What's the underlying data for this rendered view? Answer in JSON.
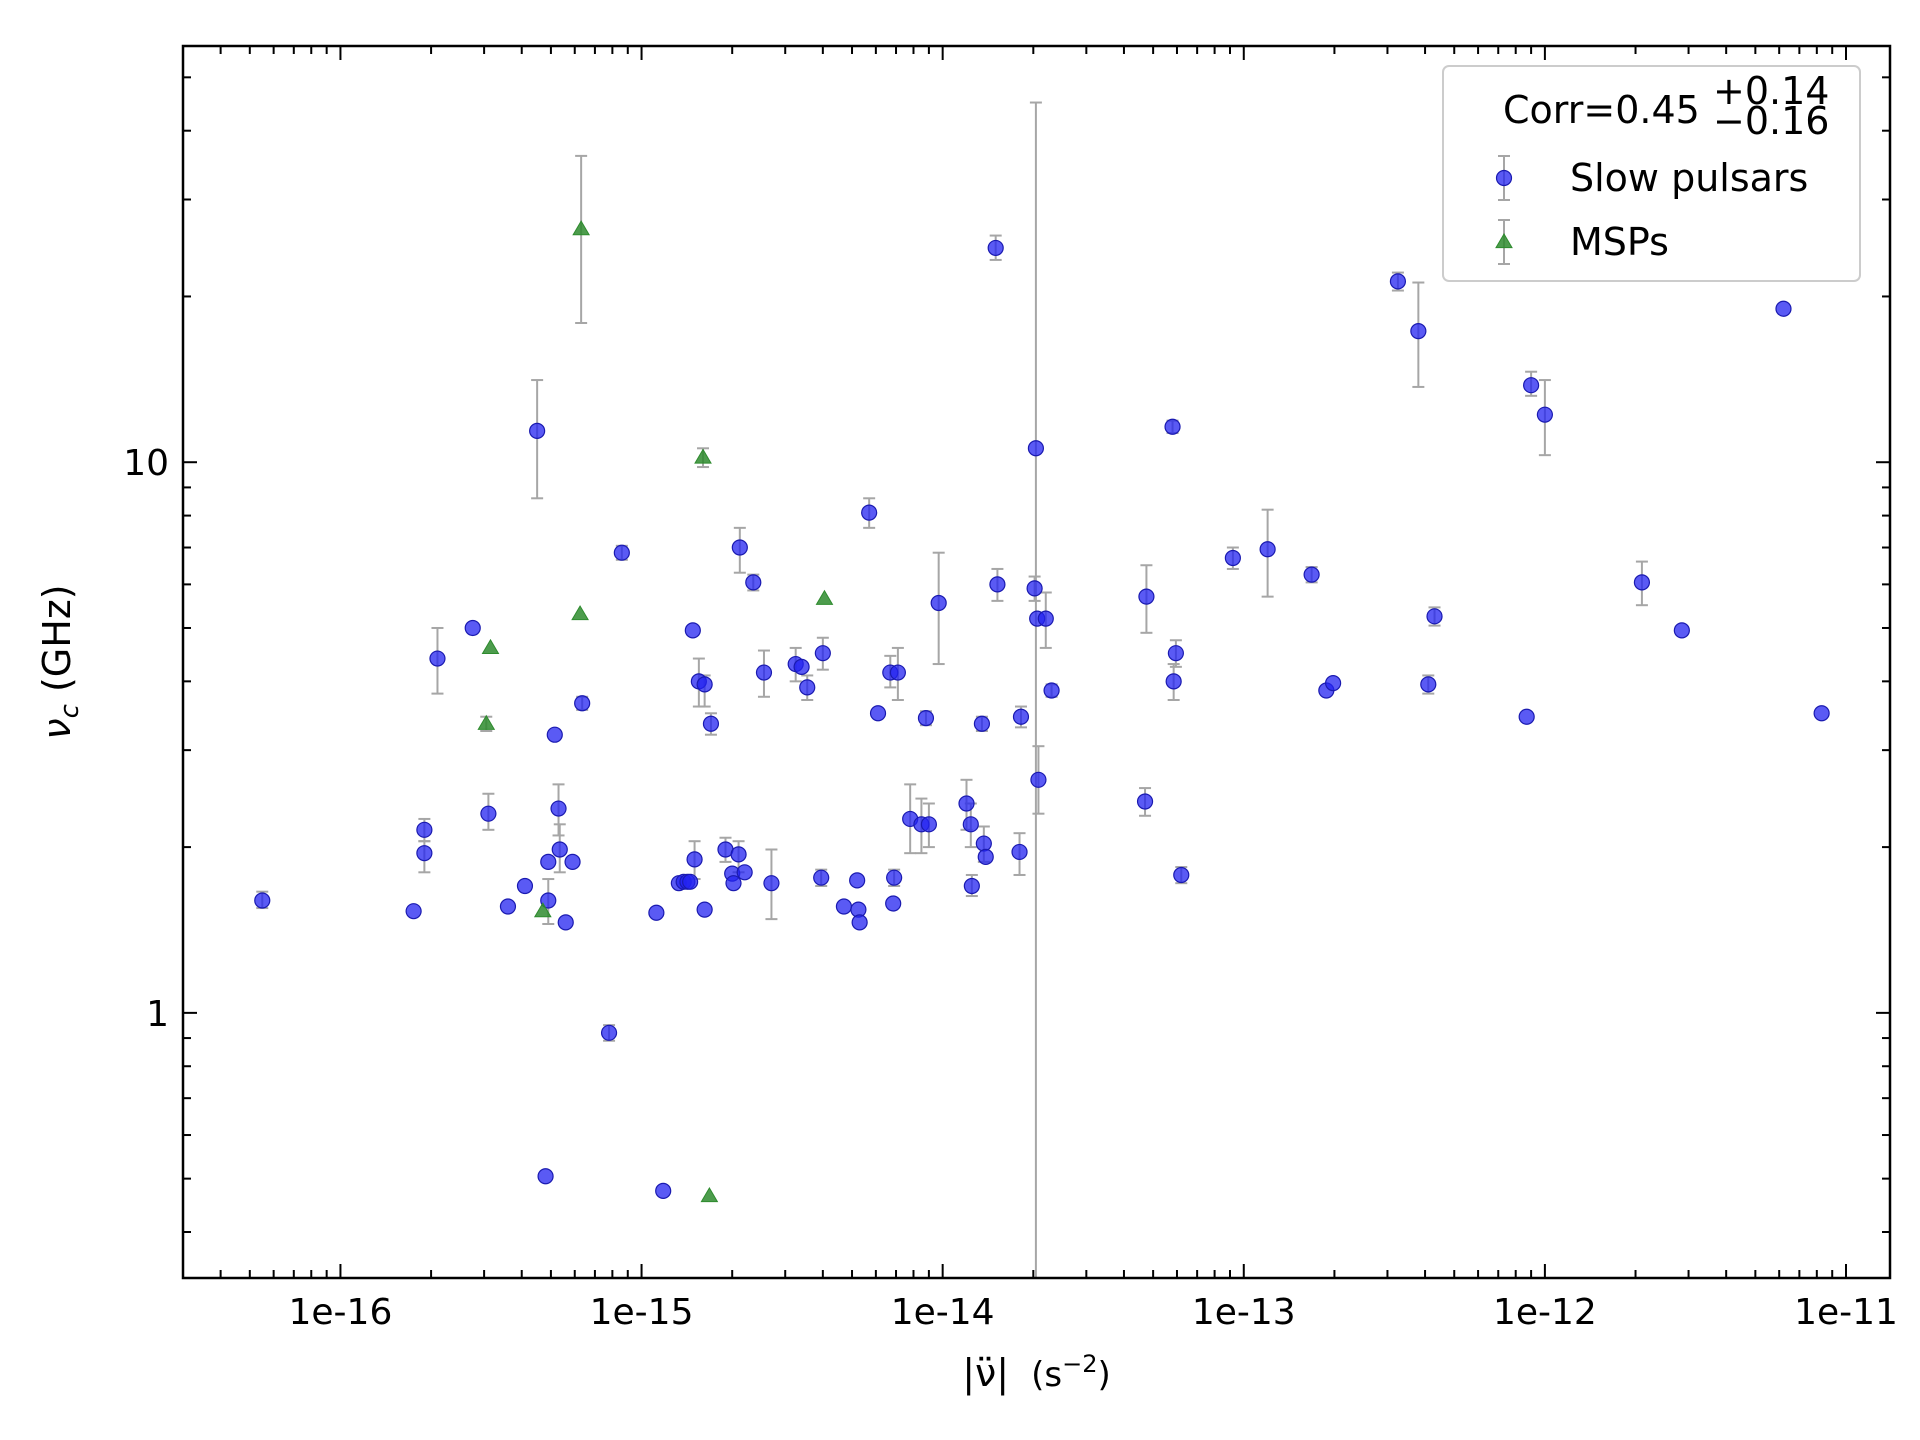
{
  "chart_data": {
    "type": "scatter",
    "x_scale": "log",
    "y_scale": "log",
    "xlim": [
      3e-17,
      1.4e-11
    ],
    "ylim": [
      0.33,
      57
    ],
    "xlabel": {
      "main": "|ν̈|",
      "unit": "(s",
      "exp": "−2",
      "close": ")"
    },
    "ylabel": {
      "symbol": "ν",
      "sub": "c",
      "unit": " (GHz)"
    },
    "x_ticks": [
      {
        "value": 1e-16,
        "label": "1e-16"
      },
      {
        "value": 1e-15,
        "label": "1e-15"
      },
      {
        "value": 1e-14,
        "label": "1e-14"
      },
      {
        "value": 1e-13,
        "label": "1e-13"
      },
      {
        "value": 1e-12,
        "label": "1e-12"
      },
      {
        "value": 1e-11,
        "label": "1e-11"
      }
    ],
    "y_ticks": [
      {
        "value": 1,
        "label": "1"
      },
      {
        "value": 10,
        "label": "10"
      }
    ],
    "grid": false,
    "legend": {
      "placement": "top-right",
      "title": {
        "main": "Corr=0.45",
        "sup": "+0.14",
        "sub": "−0.16"
      }
    },
    "series": [
      {
        "name": "Slow pulsars",
        "marker": "circle",
        "color": "#2323f0",
        "points": [
          {
            "x": 5.5e-17,
            "y": 1.6,
            "lo": 1.55,
            "hi": 1.66
          },
          {
            "x": 1.75e-16,
            "y": 1.53
          },
          {
            "x": 1.9e-16,
            "y": 2.15,
            "lo": 2.05,
            "hi": 2.25
          },
          {
            "x": 1.9e-16,
            "y": 1.95,
            "lo": 1.8,
            "hi": 2.05
          },
          {
            "x": 2.1e-16,
            "y": 4.4,
            "lo": 3.8,
            "hi": 5.0
          },
          {
            "x": 2.75e-16,
            "y": 5.0
          },
          {
            "x": 3.1e-16,
            "y": 2.3,
            "lo": 2.15,
            "hi": 2.5
          },
          {
            "x": 3.6e-16,
            "y": 1.56
          },
          {
            "x": 4.1e-16,
            "y": 1.7
          },
          {
            "x": 4.5e-16,
            "y": 11.4,
            "lo": 8.6,
            "hi": 14.1
          },
          {
            "x": 4.8e-16,
            "y": 0.505
          },
          {
            "x": 4.9e-16,
            "y": 1.88
          },
          {
            "x": 4.9e-16,
            "y": 1.6,
            "lo": 1.45,
            "hi": 1.75
          },
          {
            "x": 5.15e-16,
            "y": 3.2
          },
          {
            "x": 5.3e-16,
            "y": 2.35,
            "lo": 2.1,
            "hi": 2.6
          },
          {
            "x": 5.35e-16,
            "y": 1.98,
            "lo": 1.8,
            "hi": 2.2
          },
          {
            "x": 5.6e-16,
            "y": 1.46
          },
          {
            "x": 5.9e-16,
            "y": 1.88
          },
          {
            "x": 6.35e-16,
            "y": 3.65,
            "lo": 3.55,
            "hi": 3.75
          },
          {
            "x": 7.8e-16,
            "y": 0.92,
            "lo": 0.89,
            "hi": 0.95
          },
          {
            "x": 8.6e-16,
            "y": 6.85,
            "lo": 6.65,
            "hi": 7.05
          },
          {
            "x": 1.12e-15,
            "y": 1.52
          },
          {
            "x": 1.18e-15,
            "y": 0.475
          },
          {
            "x": 1.33e-15,
            "y": 1.72
          },
          {
            "x": 1.38e-15,
            "y": 1.73
          },
          {
            "x": 1.42e-15,
            "y": 1.73
          },
          {
            "x": 1.45e-15,
            "y": 1.73
          },
          {
            "x": 1.48e-15,
            "y": 4.95
          },
          {
            "x": 1.5e-15,
            "y": 1.9,
            "lo": 1.75,
            "hi": 2.05
          },
          {
            "x": 1.55e-15,
            "y": 4.0,
            "lo": 3.6,
            "hi": 4.4
          },
          {
            "x": 1.62e-15,
            "y": 3.95,
            "lo": 3.6,
            "hi": 4.1
          },
          {
            "x": 1.62e-15,
            "y": 1.54
          },
          {
            "x": 1.7e-15,
            "y": 3.35,
            "lo": 3.2,
            "hi": 3.5
          },
          {
            "x": 1.9e-15,
            "y": 1.98,
            "lo": 1.88,
            "hi": 2.08
          },
          {
            "x": 2e-15,
            "y": 1.79
          },
          {
            "x": 2.02e-15,
            "y": 1.72
          },
          {
            "x": 2.1e-15,
            "y": 1.94,
            "lo": 1.8,
            "hi": 2.05
          },
          {
            "x": 2.12e-15,
            "y": 7.0,
            "lo": 6.3,
            "hi": 7.6
          },
          {
            "x": 2.2e-15,
            "y": 1.8
          },
          {
            "x": 2.35e-15,
            "y": 6.05,
            "lo": 5.85,
            "hi": 6.25
          },
          {
            "x": 2.55e-15,
            "y": 4.15,
            "lo": 3.75,
            "hi": 4.55
          },
          {
            "x": 2.7e-15,
            "y": 1.72,
            "lo": 1.48,
            "hi": 1.98
          },
          {
            "x": 3.25e-15,
            "y": 4.3,
            "lo": 4.0,
            "hi": 4.6
          },
          {
            "x": 3.4e-15,
            "y": 4.25
          },
          {
            "x": 3.55e-15,
            "y": 3.9,
            "lo": 3.7,
            "hi": 4.1
          },
          {
            "x": 3.95e-15,
            "y": 1.76,
            "lo": 1.7,
            "hi": 1.82
          },
          {
            "x": 4e-15,
            "y": 4.5,
            "lo": 4.2,
            "hi": 4.8
          },
          {
            "x": 4.7e-15,
            "y": 1.56
          },
          {
            "x": 5.2e-15,
            "y": 1.74
          },
          {
            "x": 5.25e-15,
            "y": 1.54
          },
          {
            "x": 5.3e-15,
            "y": 1.46
          },
          {
            "x": 5.7e-15,
            "y": 8.1,
            "lo": 7.6,
            "hi": 8.6
          },
          {
            "x": 6.1e-15,
            "y": 3.5
          },
          {
            "x": 6.7e-15,
            "y": 4.15,
            "lo": 3.9,
            "hi": 4.45
          },
          {
            "x": 6.85e-15,
            "y": 1.58
          },
          {
            "x": 6.9e-15,
            "y": 1.76,
            "lo": 1.7,
            "hi": 1.82
          },
          {
            "x": 7.1e-15,
            "y": 4.15,
            "lo": 3.7,
            "hi": 4.6
          },
          {
            "x": 7.8e-15,
            "y": 2.25,
            "lo": 1.95,
            "hi": 2.6
          },
          {
            "x": 8.5e-15,
            "y": 2.2,
            "lo": 1.95,
            "hi": 2.45
          },
          {
            "x": 8.8e-15,
            "y": 3.43,
            "lo": 3.33,
            "hi": 3.53
          },
          {
            "x": 9e-15,
            "y": 2.2,
            "lo": 2.0,
            "hi": 2.4
          },
          {
            "x": 9.7e-15,
            "y": 5.55,
            "lo": 4.3,
            "hi": 6.85
          },
          {
            "x": 1.2e-14,
            "y": 2.4,
            "lo": 2.15,
            "hi": 2.65
          },
          {
            "x": 1.24e-14,
            "y": 2.2,
            "lo": 2.0,
            "hi": 2.4
          },
          {
            "x": 1.25e-14,
            "y": 1.7,
            "lo": 1.63,
            "hi": 1.78
          },
          {
            "x": 1.35e-14,
            "y": 3.35,
            "lo": 3.25,
            "hi": 3.45
          },
          {
            "x": 1.37e-14,
            "y": 2.03,
            "lo": 1.88,
            "hi": 2.18
          },
          {
            "x": 1.39e-14,
            "y": 1.92
          },
          {
            "x": 1.5e-14,
            "y": 24.5,
            "lo": 23.3,
            "hi": 25.8
          },
          {
            "x": 1.52e-14,
            "y": 6.0,
            "lo": 5.6,
            "hi": 6.4
          },
          {
            "x": 1.8e-14,
            "y": 1.96,
            "lo": 1.78,
            "hi": 2.12
          },
          {
            "x": 1.82e-14,
            "y": 3.45,
            "lo": 3.3,
            "hi": 3.6
          },
          {
            "x": 2.02e-14,
            "y": 5.9,
            "lo": 5.6,
            "hi": 6.2
          },
          {
            "x": 2.04e-14,
            "y": 10.6,
            "lo": 0.05,
            "hi": 45.0
          },
          {
            "x": 2.06e-14,
            "y": 5.2
          },
          {
            "x": 2.08e-14,
            "y": 2.65,
            "lo": 2.3,
            "hi": 3.05
          },
          {
            "x": 2.2e-14,
            "y": 5.2,
            "lo": 4.6,
            "hi": 5.8
          },
          {
            "x": 2.3e-14,
            "y": 3.85,
            "lo": 3.75,
            "hi": 3.95
          },
          {
            "x": 4.7e-14,
            "y": 2.42,
            "lo": 2.28,
            "hi": 2.56
          },
          {
            "x": 4.75e-14,
            "y": 5.7,
            "lo": 4.9,
            "hi": 6.5
          },
          {
            "x": 5.8e-14,
            "y": 11.6,
            "lo": 11.3,
            "hi": 11.9
          },
          {
            "x": 5.85e-14,
            "y": 4.0,
            "lo": 3.7,
            "hi": 4.3
          },
          {
            "x": 5.95e-14,
            "y": 4.5,
            "lo": 4.25,
            "hi": 4.75
          },
          {
            "x": 6.2e-14,
            "y": 1.78,
            "lo": 1.72,
            "hi": 1.84
          },
          {
            "x": 9.2e-14,
            "y": 6.7,
            "lo": 6.4,
            "hi": 7.0
          },
          {
            "x": 1.2e-13,
            "y": 6.95,
            "lo": 5.7,
            "hi": 8.2
          },
          {
            "x": 1.68e-13,
            "y": 6.25,
            "lo": 6.05,
            "hi": 6.45
          },
          {
            "x": 1.88e-13,
            "y": 3.85
          },
          {
            "x": 1.98e-13,
            "y": 3.97
          },
          {
            "x": 3.25e-13,
            "y": 21.3,
            "lo": 20.5,
            "hi": 22.1
          },
          {
            "x": 3.8e-13,
            "y": 17.3,
            "lo": 13.7,
            "hi": 21.2
          },
          {
            "x": 4.1e-13,
            "y": 3.95,
            "lo": 3.8,
            "hi": 4.1
          },
          {
            "x": 4.3e-13,
            "y": 5.25,
            "lo": 5.05,
            "hi": 5.45
          },
          {
            "x": 8.7e-13,
            "y": 3.45
          },
          {
            "x": 9e-13,
            "y": 13.8,
            "lo": 13.2,
            "hi": 14.6
          },
          {
            "x": 1e-12,
            "y": 12.2,
            "lo": 10.3,
            "hi": 14.1
          },
          {
            "x": 2.1e-12,
            "y": 6.05,
            "lo": 5.5,
            "hi": 6.6
          },
          {
            "x": 2.85e-12,
            "y": 4.95
          },
          {
            "x": 6.2e-12,
            "y": 19.0
          },
          {
            "x": 8.3e-12,
            "y": 3.5
          }
        ]
      },
      {
        "name": "MSPs",
        "marker": "triangle",
        "color": "#2e8b2e",
        "points": [
          {
            "x": 3.05e-16,
            "y": 3.35,
            "lo": 3.25,
            "hi": 3.45
          },
          {
            "x": 3.15e-16,
            "y": 4.6
          },
          {
            "x": 4.7e-16,
            "y": 1.53
          },
          {
            "x": 6.25e-16,
            "y": 5.3
          },
          {
            "x": 6.3e-16,
            "y": 26.5,
            "lo": 17.9,
            "hi": 36.0
          },
          {
            "x": 1.6e-15,
            "y": 10.2,
            "lo": 9.8,
            "hi": 10.6
          },
          {
            "x": 1.68e-15,
            "y": 0.465
          },
          {
            "x": 4.05e-15,
            "y": 5.65
          }
        ]
      }
    ]
  }
}
